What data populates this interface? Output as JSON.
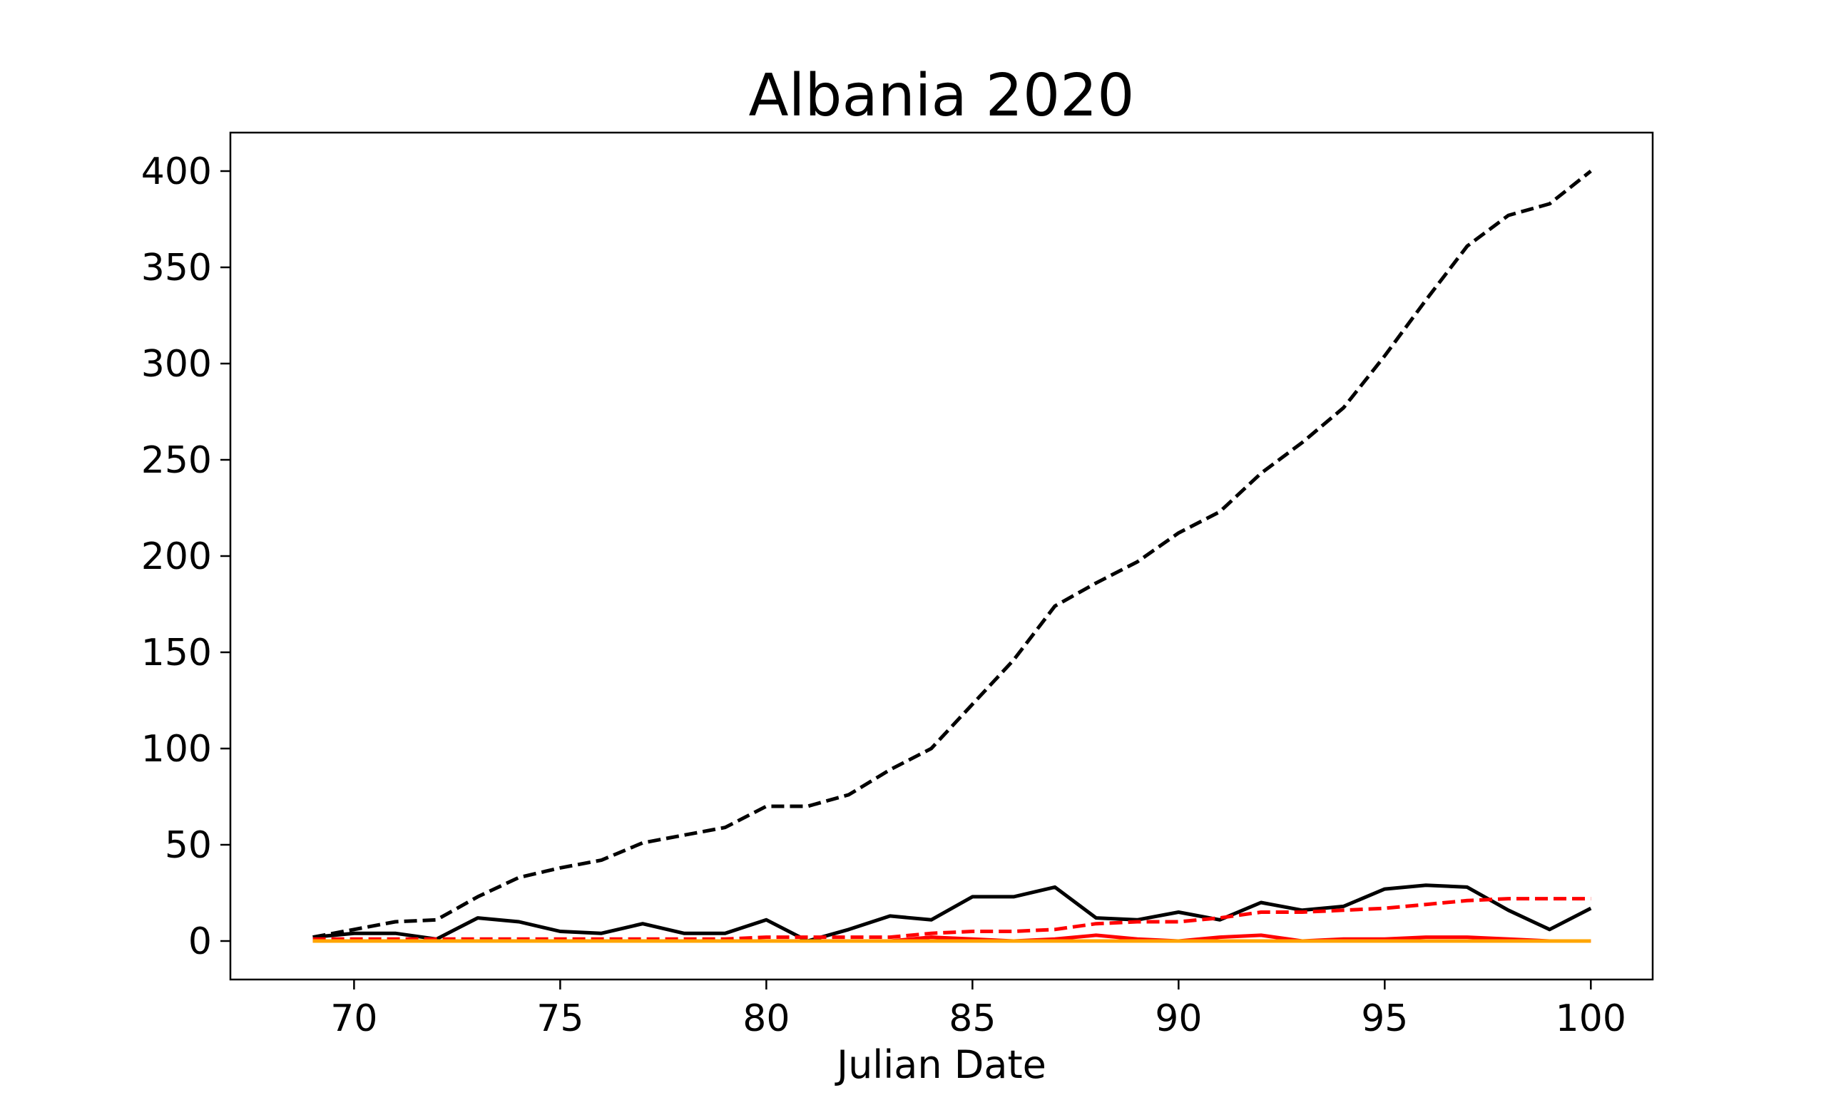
{
  "chart_data": {
    "type": "line",
    "title": "Albania 2020",
    "xlabel": "Julian Date",
    "ylabel": "",
    "xlim": [
      67,
      101.5
    ],
    "ylim": [
      -20,
      420
    ],
    "xticks": [
      70,
      75,
      80,
      85,
      90,
      95,
      100
    ],
    "yticks": [
      0,
      50,
      100,
      150,
      200,
      250,
      300,
      350,
      400
    ],
    "grid": false,
    "legend": "none",
    "x": [
      69,
      70,
      71,
      72,
      73,
      74,
      75,
      76,
      77,
      78,
      79,
      80,
      81,
      82,
      83,
      84,
      85,
      86,
      87,
      88,
      89,
      90,
      91,
      92,
      93,
      94,
      95,
      96,
      97,
      98,
      99,
      100
    ],
    "series": [
      {
        "color": "#000000",
        "style": "dashed",
        "values": [
          2,
          6,
          10,
          11,
          23,
          33,
          38,
          42,
          51,
          55,
          59,
          70,
          70,
          76,
          89,
          100,
          123,
          146,
          174,
          186,
          197,
          212,
          223,
          243,
          259,
          277,
          304,
          333,
          361,
          377,
          383,
          400
        ]
      },
      {
        "color": "#000000",
        "style": "solid",
        "values": [
          2,
          4,
          4,
          1,
          12,
          10,
          5,
          4,
          9,
          4,
          4,
          11,
          0,
          6,
          13,
          11,
          23,
          23,
          28,
          12,
          11,
          15,
          11,
          20,
          16,
          18,
          27,
          29,
          28,
          16,
          6,
          17
        ]
      },
      {
        "color": "#ff0000",
        "style": "dashed",
        "values": [
          1,
          1,
          1,
          1,
          1,
          1,
          1,
          1,
          1,
          1,
          1,
          2,
          2,
          2,
          2,
          4,
          5,
          5,
          6,
          9,
          10,
          10,
          12,
          15,
          15,
          16,
          17,
          19,
          21,
          22,
          22,
          22
        ]
      },
      {
        "color": "#ff0000",
        "style": "solid",
        "values": [
          0,
          0,
          0,
          0,
          0,
          0,
          0,
          0,
          0,
          0,
          0,
          0,
          0,
          0,
          0,
          2,
          1,
          0,
          1,
          3,
          1,
          0,
          2,
          3,
          0,
          1,
          1,
          2,
          2,
          1,
          0,
          0
        ]
      },
      {
        "color": "#ffa500",
        "style": "solid",
        "values": [
          0,
          0,
          0,
          0,
          0,
          0,
          0,
          0,
          0,
          0,
          0,
          0,
          0,
          0,
          0,
          0,
          0,
          0,
          0,
          0,
          0,
          0,
          0,
          0,
          0,
          0,
          0,
          0,
          0,
          0,
          0,
          0
        ]
      }
    ]
  }
}
